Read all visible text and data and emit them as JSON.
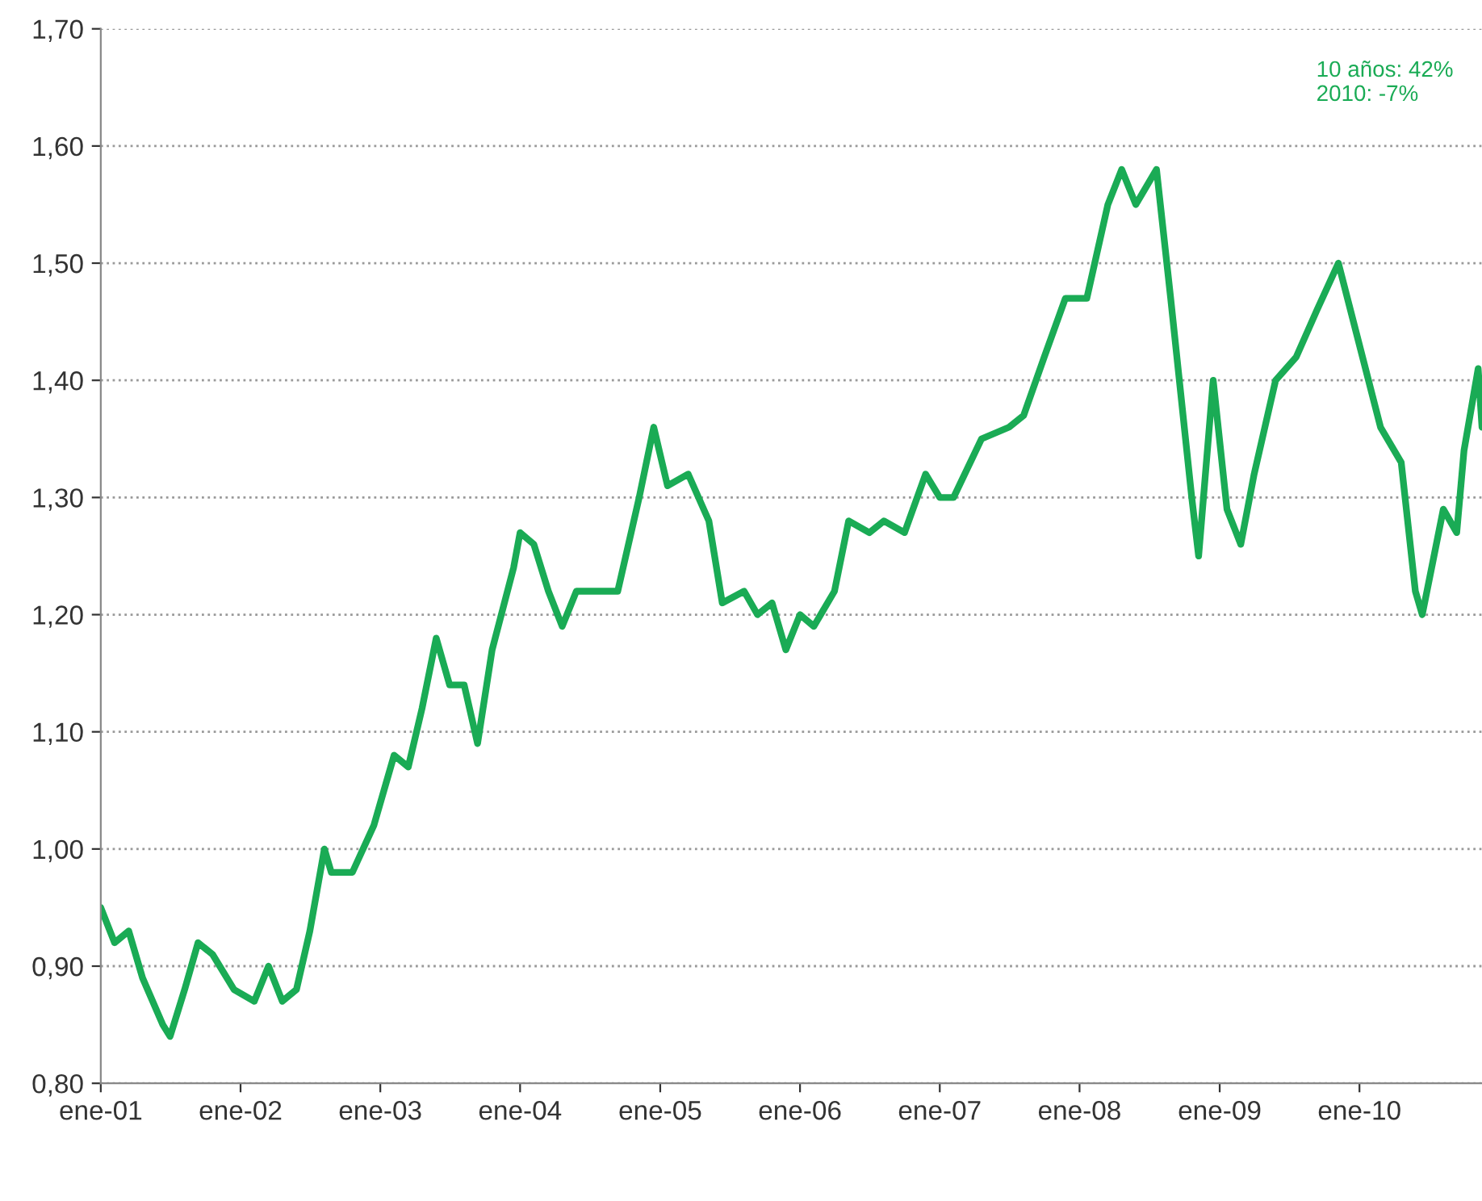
{
  "chart_data": {
    "type": "line",
    "annotations": [
      "10 años: 42%\n2010: -7%"
    ],
    "grid": "y",
    "line_style": "solid",
    "xlim": [
      "2001-01-01",
      "2010-11-17"
    ],
    "xticks": [
      {
        "value": "2001-01-01",
        "label": "ene-01"
      },
      {
        "value": "2002-01-01",
        "label": "ene-02"
      },
      {
        "value": "2003-01-01",
        "label": "ene-03"
      },
      {
        "value": "2004-01-01",
        "label": "ene-04"
      },
      {
        "value": "2005-01-01",
        "label": "ene-05"
      },
      {
        "value": "2006-01-01",
        "label": "ene-06"
      },
      {
        "value": "2007-01-01",
        "label": "ene-07"
      },
      {
        "value": "2008-01-01",
        "label": "ene-08"
      },
      {
        "value": "2009-01-01",
        "label": "ene-09"
      },
      {
        "value": "2010-01-01",
        "label": "ene-10"
      }
    ],
    "ylim": [
      0.8,
      1.7
    ],
    "yticks": [
      {
        "value": 0.8,
        "label": "0,80"
      },
      {
        "value": 0.9,
        "label": "0,90"
      },
      {
        "value": 1.0,
        "label": "1,00"
      },
      {
        "value": 1.1,
        "label": "1,10"
      },
      {
        "value": 1.2,
        "label": "1,20"
      },
      {
        "value": 1.3,
        "label": "1,30"
      },
      {
        "value": 1.4,
        "label": "1,40"
      },
      {
        "value": 1.5,
        "label": "1,50"
      },
      {
        "value": 1.6,
        "label": "1,60"
      },
      {
        "value": 1.7,
        "label": "1,70"
      }
    ],
    "x": [
      "2001-01-01",
      "2001-02-06",
      "2001-03-15",
      "2001-04-20",
      "2001-06-12",
      "2001-07-01",
      "2001-08-08",
      "2001-09-12",
      "2001-10-20",
      "2001-12-15",
      "2002-02-06",
      "2002-03-15",
      "2002-04-20",
      "2002-05-27",
      "2002-07-01",
      "2002-08-08",
      "2002-08-26",
      "2002-10-20",
      "2002-12-15",
      "2003-02-06",
      "2003-03-15",
      "2003-04-20",
      "2003-05-27",
      "2003-07-01",
      "2003-08-08",
      "2003-09-12",
      "2003-10-20",
      "2003-12-15",
      "2004-01-01",
      "2004-02-06",
      "2004-03-15",
      "2004-04-20",
      "2004-05-27",
      "2004-07-20",
      "2004-09-12",
      "2004-11-07",
      "2004-12-15",
      "2005-01-20",
      "2005-03-15",
      "2005-05-08",
      "2005-06-12",
      "2005-08-08",
      "2005-09-12",
      "2005-10-20",
      "2005-11-25",
      "2006-01-01",
      "2006-02-06",
      "2006-04-01",
      "2006-05-08",
      "2006-07-01",
      "2006-08-08",
      "2006-10-01",
      "2006-11-25",
      "2007-01-01",
      "2007-02-06",
      "2007-04-20",
      "2007-07-01",
      "2007-08-08",
      "2007-10-01",
      "2007-11-25",
      "2008-01-20",
      "2008-03-15",
      "2008-04-20",
      "2008-05-27",
      "2008-07-20",
      "2008-08-26",
      "2008-10-20",
      "2008-11-07",
      "2008-12-15",
      "2009-01-20",
      "2009-02-25",
      "2009-04-01",
      "2009-05-27",
      "2009-07-20",
      "2009-09-12",
      "2009-11-07",
      "2010-01-01",
      "2010-02-25",
      "2010-04-20",
      "2010-05-27",
      "2010-06-14",
      "2010-08-08",
      "2010-09-12",
      "2010-10-01",
      "2010-11-07",
      "2010-11-17"
    ],
    "series": [
      {
        "color": "#1aab55",
        "values": [
          0.95,
          0.92,
          0.93,
          0.89,
          0.85,
          0.84,
          0.88,
          0.92,
          0.91,
          0.88,
          0.87,
          0.9,
          0.87,
          0.88,
          0.93,
          1.0,
          0.98,
          0.98,
          1.02,
          1.08,
          1.07,
          1.12,
          1.18,
          1.14,
          1.14,
          1.09,
          1.17,
          1.24,
          1.27,
          1.26,
          1.22,
          1.19,
          1.22,
          1.22,
          1.22,
          1.3,
          1.36,
          1.31,
          1.32,
          1.28,
          1.21,
          1.22,
          1.2,
          1.21,
          1.17,
          1.2,
          1.19,
          1.22,
          1.28,
          1.27,
          1.28,
          1.27,
          1.32,
          1.3,
          1.3,
          1.35,
          1.36,
          1.37,
          1.42,
          1.47,
          1.47,
          1.55,
          1.58,
          1.55,
          1.58,
          1.47,
          1.3,
          1.25,
          1.4,
          1.29,
          1.26,
          1.32,
          1.4,
          1.42,
          1.46,
          1.5,
          1.43,
          1.36,
          1.33,
          1.22,
          1.2,
          1.29,
          1.27,
          1.34,
          1.41,
          1.36
        ]
      }
    ]
  }
}
